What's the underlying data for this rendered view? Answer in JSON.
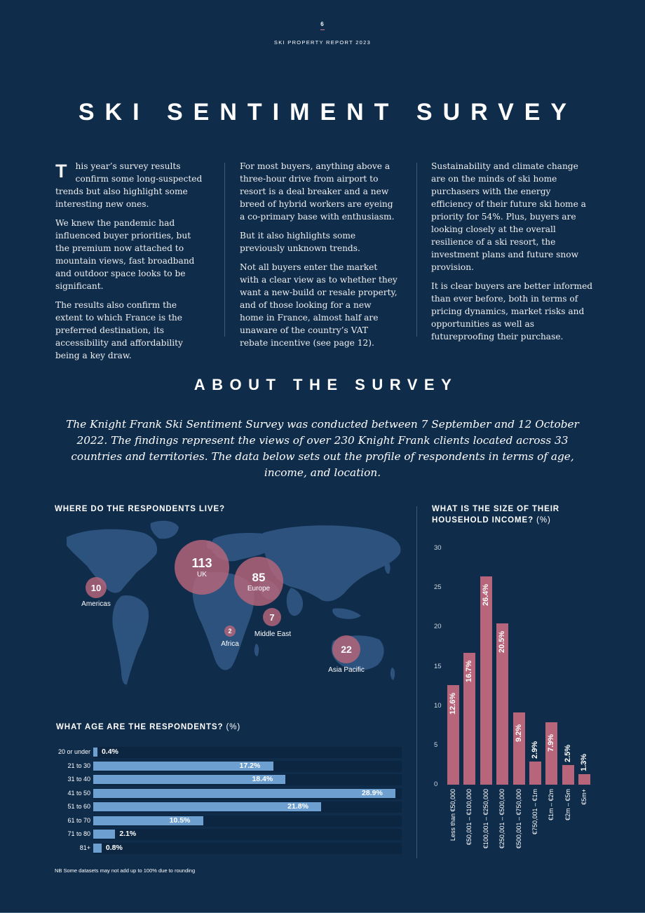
{
  "header": {
    "page_number": "6",
    "report_title": "SKI PROPERTY REPORT 2023"
  },
  "main_heading": "SKI SENTIMENT SURVEY",
  "intro": {
    "dropcap": "T",
    "col1": [
      "his year’s survey results confirm some long-suspected trends but also highlight some interesting new ones.",
      "We knew the pandemic had influenced buyer priorities, but the premium now attached to mountain views, fast broadband and outdoor space looks to be significant.",
      "The results also confirm the extent to which France is the preferred destination, its accessibility and affordability being a key draw."
    ],
    "col2": [
      "For most buyers, anything above a three-hour drive from airport to resort is a deal breaker and a new breed of hybrid workers are eyeing a co-primary base with enthusiasm.",
      "But it also highlights some previously unknown trends.",
      "Not all buyers enter the market with a clear view as to whether they want a new-build or resale property, and of those looking for a new home in France, almost half are unaware of the country’s VAT rebate incentive (see page 12)."
    ],
    "col3": [
      "Sustainability and climate change are on the minds of ski home purchasers with the energy efficiency of their future ski home a priority for 54%. Plus, buyers are looking closely at the overall resilience of a ski resort, the investment plans and future snow provision.",
      "It is clear buyers are better informed than ever before, both in terms of pricing dynamics, market risks and opportunities as well as futureproofing their purchase."
    ]
  },
  "about": {
    "heading": "ABOUT THE SURVEY",
    "text": "The Knight Frank Ski Sentiment Survey was conducted between 7 September and 12 October 2022. The findings represent the views of over 230 Knight Frank clients located across 33 countries and territories. The data below sets out the profile of respondents in terms of age, income, and location."
  },
  "location": {
    "title": "WHERE DO THE RESPONDENTS LIVE?",
    "regions": [
      {
        "name": "UK",
        "value": "113"
      },
      {
        "name": "Europe",
        "value": "85"
      },
      {
        "name": "Americas",
        "value": "10"
      },
      {
        "name": "Middle East",
        "value": "7"
      },
      {
        "name": "Africa",
        "value": "2"
      },
      {
        "name": "Asia Pacific",
        "value": "22"
      }
    ]
  },
  "age": {
    "title": "WHAT AGE ARE THE RESPONDENTS?",
    "unit": "(%)",
    "rows": [
      {
        "label": "20 or under",
        "value": 0.4,
        "display": "0.4%"
      },
      {
        "label": "21 to 30",
        "value": 17.2,
        "display": "17.2%"
      },
      {
        "label": "31 to 40",
        "value": 18.4,
        "display": "18.4%"
      },
      {
        "label": "41 to 50",
        "value": 28.9,
        "display": "28.9%"
      },
      {
        "label": "51 to 60",
        "value": 21.8,
        "display": "21.8%"
      },
      {
        "label": "61 to 70",
        "value": 10.5,
        "display": "10.5%"
      },
      {
        "label": "71 to 80",
        "value": 2.1,
        "display": "2.1%"
      },
      {
        "label": "81+",
        "value": 0.8,
        "display": "0.8%"
      }
    ]
  },
  "income": {
    "title": "WHAT IS THE SIZE OF THEIR HOUSEHOLD INCOME?",
    "unit": "(%)"
  },
  "footnote": "NB Some datasets may not add up to 100% due to rounding",
  "colors": {
    "background": "#0f2c4a",
    "age_bar": "#6d9fd0",
    "income_bar": "#b7657a",
    "bubble": "#b7657a"
  },
  "chart_data": [
    {
      "type": "bar",
      "orientation": "horizontal",
      "title": "WHAT AGE ARE THE RESPONDENTS? (%)",
      "categories": [
        "20 or under",
        "21 to 30",
        "31 to 40",
        "41 to 50",
        "51 to 60",
        "61 to 70",
        "71 to 80",
        "81+"
      ],
      "values": [
        0.4,
        17.2,
        18.4,
        28.9,
        21.8,
        10.5,
        2.1,
        0.8
      ]
    },
    {
      "type": "bar",
      "title": "WHAT IS THE SIZE OF THEIR HOUSEHOLD INCOME? (%)",
      "categories": [
        "Less than €50,000",
        "€50,001 – €100,000",
        "€100,001 – €250,000",
        "€250,001 – €500,000",
        "€500,001 – €750,000",
        "€750,001 – €1m",
        "€1m – €2m",
        "€2m – €5m",
        "€5m+"
      ],
      "values": [
        12.6,
        16.7,
        26.4,
        20.5,
        9.2,
        2.9,
        7.9,
        2.5,
        1.3
      ],
      "labels": [
        "12.6%",
        "16.7%",
        "26.4%",
        "20.5%",
        "9.2%",
        "2.9%",
        "7.9%",
        "2.5%",
        "1.3%"
      ],
      "yticks": [
        "0",
        "5",
        "10",
        "15",
        "20",
        "25",
        "30"
      ],
      "ylim": [
        0,
        30
      ]
    }
  ]
}
